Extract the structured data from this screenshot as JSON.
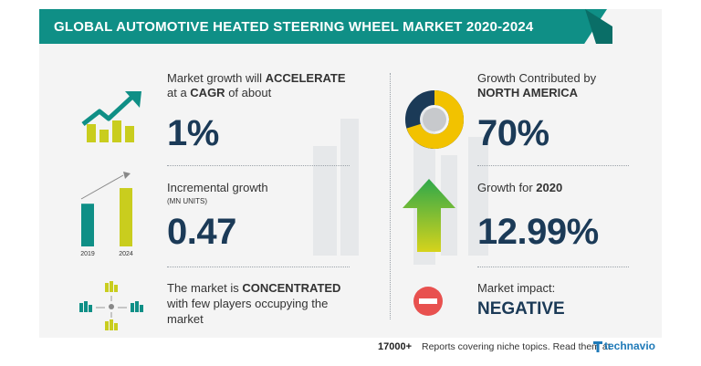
{
  "header": {
    "title": "GLOBAL AUTOMOTIVE HEATED STEERING WHEEL MARKET 2020-2024"
  },
  "cagr": {
    "line1_prefix": "Market growth will ",
    "line1_bold": "ACCELERATE",
    "line2_prefix": "at a ",
    "line2_bold": "CAGR",
    "line2_suffix": " of about",
    "value": "1%",
    "icon": "growth-chart-icon"
  },
  "incremental": {
    "label": "Incremental growth",
    "unit": "(MN UNITS)",
    "value": "0.47",
    "chart": {
      "categories": [
        "2019",
        "2024"
      ],
      "values": [
        0.6,
        0.82
      ]
    },
    "icon": "bar-chart-icon"
  },
  "market": {
    "line1_prefix": "The market is ",
    "line1_bold": "CONCENTRATED",
    "line2": "with few players occupying the",
    "line3": "market",
    "icon": "concentrated-market-icon"
  },
  "region": {
    "line1": "Growth Contributed by",
    "line2": "NORTH AMERICA",
    "value": "70%",
    "share": 0.7,
    "icon": "donut-chart-icon"
  },
  "growth2020": {
    "label_prefix": "Growth for ",
    "label_year": "2020",
    "value": "12.99%",
    "icon": "up-arrow-icon"
  },
  "impact": {
    "label": "Market impact:",
    "value": "NEGATIVE",
    "icon": "minus-circle-icon"
  },
  "footer": {
    "count": "17000+",
    "text": "Reports covering niche topics. Read them at",
    "brand": "technavio"
  },
  "colors": {
    "teal": "#0f8f86",
    "dark_teal": "#0a6e67",
    "navy": "#1b3a57",
    "lime": "#c9cd1e",
    "yellow": "#f2c200",
    "green": "#2ea84a",
    "red": "#e8514f"
  }
}
